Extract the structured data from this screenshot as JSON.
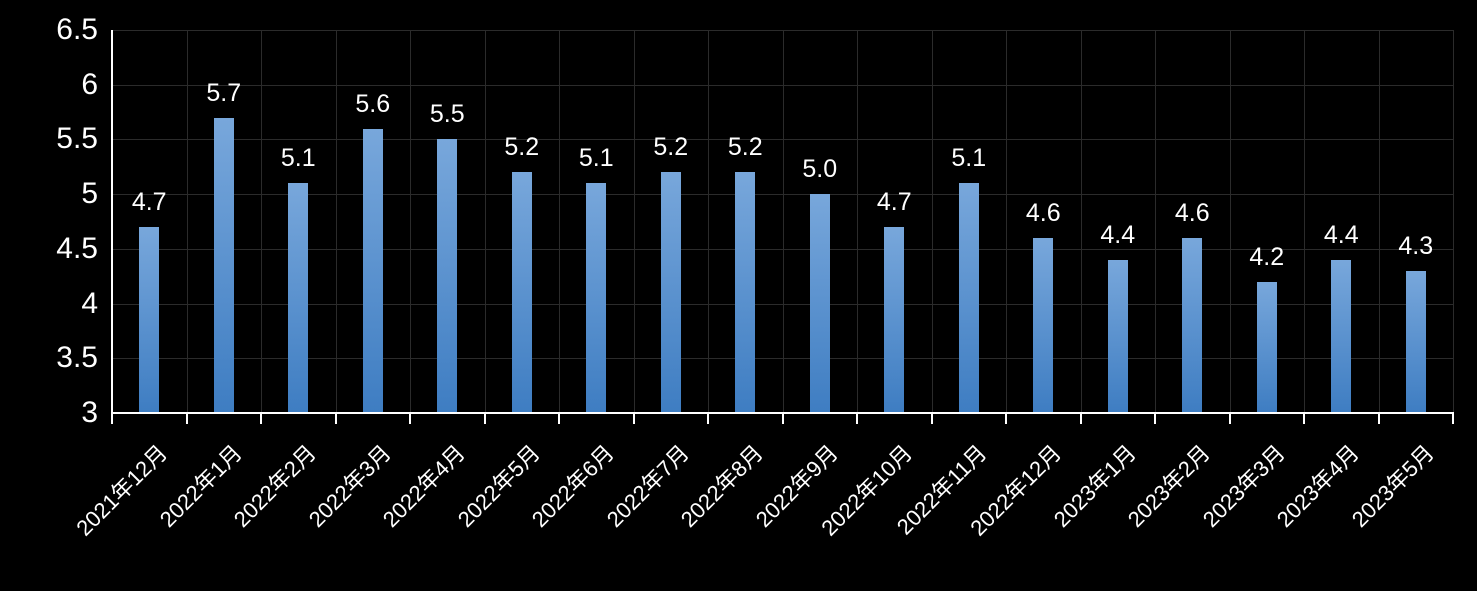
{
  "chart_data": {
    "type": "bar",
    "title": "",
    "xlabel": "",
    "ylabel": "",
    "categories": [
      "2021年12月",
      "2022年1月",
      "2022年2月",
      "2022年3月",
      "2022年4月",
      "2022年5月",
      "2022年6月",
      "2022年7月",
      "2022年8月",
      "2022年9月",
      "2022年10月",
      "2022年11月",
      "2022年12月",
      "2023年1月",
      "2023年2月",
      "2023年3月",
      "2023年4月",
      "2023年5月"
    ],
    "values": [
      4.7,
      5.7,
      5.1,
      5.6,
      5.5,
      5.2,
      5.1,
      5.2,
      5.2,
      5.0,
      4.7,
      5.1,
      4.6,
      4.4,
      4.6,
      4.2,
      4.4,
      4.3
    ],
    "data_labels": [
      "4.7",
      "5.7",
      "5.1",
      "5.6",
      "5.5",
      "5.2",
      "5.1",
      "5.2",
      "5.2",
      "5.0",
      "4.7",
      "5.1",
      "4.6",
      "4.4",
      "4.6",
      "4.2",
      "4.4",
      "4.3"
    ],
    "ylim": [
      3,
      6.5
    ],
    "ytick_step": 0.5,
    "ytick_labels": [
      "3",
      "3.5",
      "4",
      "4.5",
      "5",
      "5.5",
      "6",
      "6.5"
    ],
    "grid": true,
    "legend": "none",
    "colors": {
      "background": "#000000",
      "text": "#ffffff",
      "gridline": "#2b2b2b",
      "axis": "#ffffff",
      "bar_top": "#78a7db",
      "bar_bottom": "#3e7dc2"
    }
  }
}
